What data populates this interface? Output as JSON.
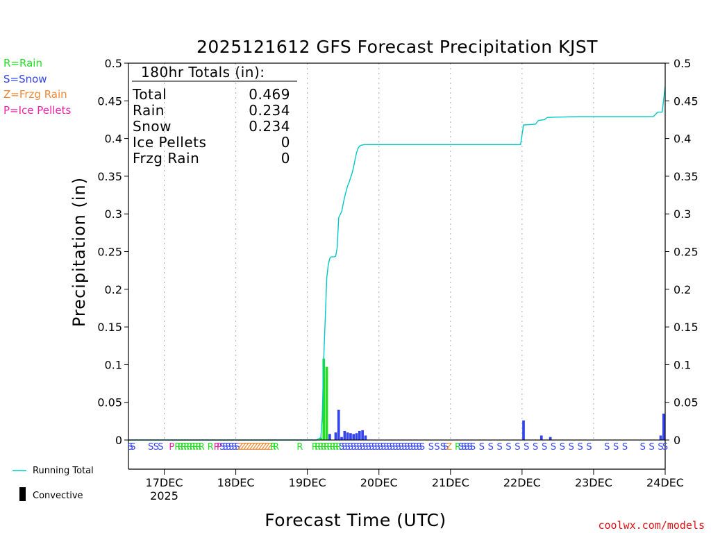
{
  "chart_data": {
    "type": "bar",
    "title": "2025121612 GFS Forecast Precipitation KJST",
    "xlabel": "Forecast Time (UTC)",
    "ylabel": "Precipitation (in)",
    "ylim": [
      0,
      0.5
    ],
    "yticks": [
      "0",
      "0.05",
      "0.1",
      "0.15",
      "0.2",
      "0.25",
      "0.3",
      "0.35",
      "0.4",
      "0.45",
      "0.5"
    ],
    "x_unit": "hours since 2025-12-16 12Z",
    "xlim": [
      0,
      180
    ],
    "xticks": [
      {
        "hour": 12,
        "label": "17DEC",
        "sub": "2025"
      },
      {
        "hour": 36,
        "label": "18DEC",
        "sub": ""
      },
      {
        "hour": 60,
        "label": "19DEC",
        "sub": ""
      },
      {
        "hour": 84,
        "label": "20DEC",
        "sub": ""
      },
      {
        "hour": 108,
        "label": "21DEC",
        "sub": ""
      },
      {
        "hour": 132,
        "label": "22DEC",
        "sub": ""
      },
      {
        "hour": 156,
        "label": "23DEC",
        "sub": ""
      },
      {
        "hour": 180,
        "label": "24DEC",
        "sub": ""
      }
    ],
    "type_legend": [
      {
        "label": "R=Rain",
        "color": "#22dd22"
      },
      {
        "label": "S=Snow",
        "color": "#3344ee"
      },
      {
        "label": "Z=Frzg Rain",
        "color": "#ee8833"
      },
      {
        "label": "P=Ice Pellets",
        "color": "#ee22aa"
      }
    ],
    "series_legend": [
      {
        "label": "Running Total",
        "color": "#00c8c8"
      },
      {
        "label": "Convective",
        "color": "#000000"
      }
    ],
    "totals_heading": "180hr Totals (in):",
    "totals": [
      {
        "label": "Total",
        "value": "0.469"
      },
      {
        "label": "Rain",
        "value": "0.234"
      },
      {
        "label": "Snow",
        "value": "0.234"
      },
      {
        "label": "Ice Pellets",
        "value": "0"
      },
      {
        "label": "Frzg Rain",
        "value": "0"
      }
    ],
    "bars": [
      {
        "h": 64.5,
        "v": 0.003,
        "type": "R"
      },
      {
        "h": 65.5,
        "v": 0.108,
        "type": "R"
      },
      {
        "h": 66.5,
        "v": 0.097,
        "type": "R"
      },
      {
        "h": 67.5,
        "v": 0.008,
        "type": "S"
      },
      {
        "h": 69.5,
        "v": 0.01,
        "type": "S"
      },
      {
        "h": 70.5,
        "v": 0.04,
        "type": "S"
      },
      {
        "h": 71.5,
        "v": 0.004,
        "type": "S"
      },
      {
        "h": 72.5,
        "v": 0.012,
        "type": "S"
      },
      {
        "h": 73.5,
        "v": 0.01,
        "type": "S"
      },
      {
        "h": 74.5,
        "v": 0.009,
        "type": "S"
      },
      {
        "h": 75.5,
        "v": 0.008,
        "type": "S"
      },
      {
        "h": 76.5,
        "v": 0.009,
        "type": "S"
      },
      {
        "h": 77.5,
        "v": 0.012,
        "type": "S"
      },
      {
        "h": 78.5,
        "v": 0.013,
        "type": "S"
      },
      {
        "h": 79.5,
        "v": 0.006,
        "type": "S"
      },
      {
        "h": 132.5,
        "v": 0.026,
        "type": "S"
      },
      {
        "h": 138.5,
        "v": 0.006,
        "type": "S"
      },
      {
        "h": 141.5,
        "v": 0.004,
        "type": "S"
      },
      {
        "h": 178.5,
        "v": 0.006,
        "type": "S"
      },
      {
        "h": 179.5,
        "v": 0.035,
        "type": "S"
      }
    ],
    "running_total": [
      [
        0,
        0
      ],
      [
        63,
        0
      ],
      [
        64.5,
        0.003
      ],
      [
        65,
        0.03
      ],
      [
        65.5,
        0.11
      ],
      [
        66,
        0.16
      ],
      [
        66.5,
        0.215
      ],
      [
        67,
        0.232
      ],
      [
        67.5,
        0.241
      ],
      [
        68,
        0.243
      ],
      [
        69,
        0.243
      ],
      [
        69.5,
        0.244
      ],
      [
        70,
        0.255
      ],
      [
        70.5,
        0.295
      ],
      [
        71,
        0.299
      ],
      [
        71.5,
        0.303
      ],
      [
        72,
        0.313
      ],
      [
        72.5,
        0.322
      ],
      [
        73,
        0.33
      ],
      [
        73.5,
        0.337
      ],
      [
        74,
        0.342
      ],
      [
        74.5,
        0.348
      ],
      [
        75,
        0.354
      ],
      [
        75.5,
        0.362
      ],
      [
        76,
        0.372
      ],
      [
        76.5,
        0.381
      ],
      [
        77,
        0.387
      ],
      [
        77.5,
        0.39
      ],
      [
        78,
        0.391
      ],
      [
        79,
        0.392
      ],
      [
        80,
        0.392
      ],
      [
        131.5,
        0.392
      ],
      [
        132.5,
        0.418
      ],
      [
        136.5,
        0.419
      ],
      [
        137.5,
        0.424
      ],
      [
        139.5,
        0.425
      ],
      [
        140.5,
        0.428
      ],
      [
        150,
        0.429
      ],
      [
        176,
        0.429
      ],
      [
        177.5,
        0.435
      ],
      [
        179,
        0.435
      ],
      [
        180,
        0.469
      ]
    ],
    "type_markers": [
      {
        "h": 0.6,
        "t": "S"
      },
      {
        "h": 1.5,
        "t": "S"
      },
      {
        "h": 7.5,
        "t": "S"
      },
      {
        "h": 9.3,
        "t": "S"
      },
      {
        "h": 10.8,
        "t": "S"
      },
      {
        "h": 14.5,
        "t": "P"
      },
      {
        "h": 16.5,
        "t": "R"
      },
      {
        "h": 17.5,
        "t": "R"
      },
      {
        "h": 18.5,
        "t": "R"
      },
      {
        "h": 19.5,
        "t": "R"
      },
      {
        "h": 20.5,
        "t": "R"
      },
      {
        "h": 21.5,
        "t": "R"
      },
      {
        "h": 22.5,
        "t": "R"
      },
      {
        "h": 23.5,
        "t": "R"
      },
      {
        "h": 24.5,
        "t": "R"
      },
      {
        "h": 27.5,
        "t": "R"
      },
      {
        "h": 29.5,
        "t": "P"
      },
      {
        "h": 30.5,
        "t": "P"
      },
      {
        "h": 31.5,
        "t": "S"
      },
      {
        "h": 32.5,
        "t": "S"
      },
      {
        "h": 33.5,
        "t": "S"
      },
      {
        "h": 34.5,
        "t": "S"
      },
      {
        "h": 35.5,
        "t": "S"
      },
      {
        "h": 36.5,
        "t": "S"
      },
      {
        "h": 37.5,
        "t": "Z"
      },
      {
        "h": 38.5,
        "t": "Z"
      },
      {
        "h": 39.5,
        "t": "Z"
      },
      {
        "h": 40.5,
        "t": "Z"
      },
      {
        "h": 41.5,
        "t": "Z"
      },
      {
        "h": 42.5,
        "t": "Z"
      },
      {
        "h": 43.5,
        "t": "Z"
      },
      {
        "h": 44.5,
        "t": "Z"
      },
      {
        "h": 45.5,
        "t": "Z"
      },
      {
        "h": 46.5,
        "t": "Z"
      },
      {
        "h": 47.5,
        "t": "Z"
      },
      {
        "h": 48.5,
        "t": "R"
      },
      {
        "h": 49.5,
        "t": "R"
      },
      {
        "h": 57.5,
        "t": "R"
      },
      {
        "h": 62.5,
        "t": "R"
      },
      {
        "h": 63.5,
        "t": "R"
      },
      {
        "h": 64.5,
        "t": "R"
      },
      {
        "h": 65.5,
        "t": "R"
      },
      {
        "h": 66.5,
        "t": "R"
      },
      {
        "h": 67.5,
        "t": "R"
      },
      {
        "h": 68.5,
        "t": "R"
      },
      {
        "h": 69.5,
        "t": "R"
      },
      {
        "h": 70.5,
        "t": "R"
      },
      {
        "h": 71.5,
        "t": "S"
      },
      {
        "h": 72.5,
        "t": "S"
      },
      {
        "h": 73.5,
        "t": "S"
      },
      {
        "h": 74.5,
        "t": "S"
      },
      {
        "h": 75.5,
        "t": "S"
      },
      {
        "h": 76.5,
        "t": "S"
      },
      {
        "h": 77.5,
        "t": "S"
      },
      {
        "h": 78.5,
        "t": "S"
      },
      {
        "h": 79.5,
        "t": "S"
      },
      {
        "h": 80.5,
        "t": "S"
      },
      {
        "h": 81.5,
        "t": "S"
      },
      {
        "h": 82.5,
        "t": "S"
      },
      {
        "h": 83.5,
        "t": "S"
      },
      {
        "h": 84.5,
        "t": "S"
      },
      {
        "h": 85.5,
        "t": "S"
      },
      {
        "h": 86.5,
        "t": "S"
      },
      {
        "h": 87.5,
        "t": "S"
      },
      {
        "h": 88.5,
        "t": "S"
      },
      {
        "h": 89.5,
        "t": "S"
      },
      {
        "h": 90.5,
        "t": "S"
      },
      {
        "h": 91.5,
        "t": "S"
      },
      {
        "h": 92.5,
        "t": "S"
      },
      {
        "h": 93.5,
        "t": "S"
      },
      {
        "h": 94.5,
        "t": "S"
      },
      {
        "h": 95.5,
        "t": "S"
      },
      {
        "h": 96.5,
        "t": "S"
      },
      {
        "h": 97.5,
        "t": "S"
      },
      {
        "h": 98.5,
        "t": "S"
      },
      {
        "h": 101.5,
        "t": "S"
      },
      {
        "h": 103.5,
        "t": "S"
      },
      {
        "h": 105.5,
        "t": "S"
      },
      {
        "h": 106.5,
        "t": "S"
      },
      {
        "h": 107.5,
        "t": "Z"
      },
      {
        "h": 110.5,
        "t": "R"
      },
      {
        "h": 111.5,
        "t": "S"
      },
      {
        "h": 112.5,
        "t": "S"
      },
      {
        "h": 113.5,
        "t": "S"
      },
      {
        "h": 114.5,
        "t": "S"
      },
      {
        "h": 115.5,
        "t": "S"
      },
      {
        "h": 118.5,
        "t": "S"
      },
      {
        "h": 121.5,
        "t": "S"
      },
      {
        "h": 124.5,
        "t": "S"
      },
      {
        "h": 127.5,
        "t": "S"
      },
      {
        "h": 130.5,
        "t": "S"
      },
      {
        "h": 133.5,
        "t": "S"
      },
      {
        "h": 136.5,
        "t": "S"
      },
      {
        "h": 139.5,
        "t": "S"
      },
      {
        "h": 142.5,
        "t": "S"
      },
      {
        "h": 145.5,
        "t": "S"
      },
      {
        "h": 148.5,
        "t": "S"
      },
      {
        "h": 151.5,
        "t": "S"
      },
      {
        "h": 154.5,
        "t": "S"
      },
      {
        "h": 160.5,
        "t": "S"
      },
      {
        "h": 163.5,
        "t": "S"
      },
      {
        "h": 166.5,
        "t": "S"
      },
      {
        "h": 172.5,
        "t": "S"
      },
      {
        "h": 175.5,
        "t": "S"
      },
      {
        "h": 178.5,
        "t": "S"
      },
      {
        "h": 180,
        "t": "S"
      }
    ]
  },
  "footer": {
    "credit": "coolwx.com/models"
  }
}
